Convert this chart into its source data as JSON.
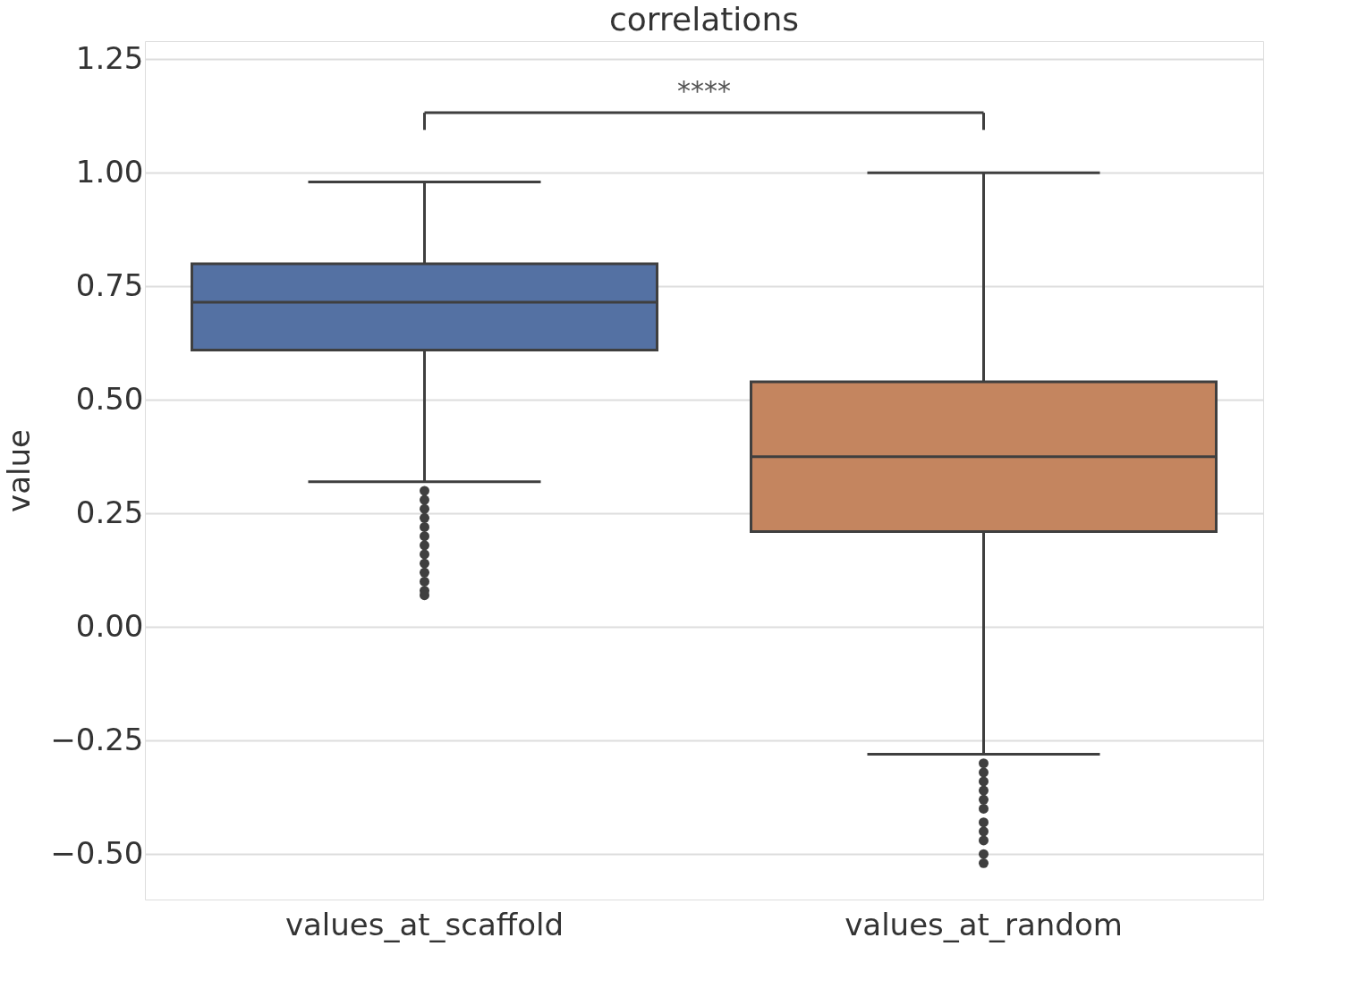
{
  "chart_data": {
    "type": "box",
    "title": "correlations",
    "ylabel": "value",
    "categories": [
      "values_at_scaffold",
      "values_at_random"
    ],
    "colors": [
      "#5471a3",
      "#c4855f"
    ],
    "boxes": [
      {
        "low": 0.32,
        "q1": 0.61,
        "median": 0.715,
        "q3": 0.8,
        "high": 0.98,
        "outliers": [
          0.3,
          0.28,
          0.26,
          0.24,
          0.22,
          0.2,
          0.18,
          0.16,
          0.14,
          0.12,
          0.1,
          0.08,
          0.07
        ]
      },
      {
        "low": -0.28,
        "q1": 0.21,
        "median": 0.375,
        "q3": 0.54,
        "high": 1.0,
        "outliers": [
          -0.3,
          -0.32,
          -0.34,
          -0.36,
          -0.38,
          -0.4,
          -0.43,
          -0.45,
          -0.47,
          -0.5,
          -0.52
        ]
      }
    ],
    "annotations": [
      "****"
    ],
    "ylim": [
      -0.6,
      1.29
    ],
    "yticks": [
      {
        "value": -0.5,
        "label": "−0.50"
      },
      {
        "value": -0.25,
        "label": "−0.25"
      },
      {
        "value": 0,
        "label": "0.00"
      },
      {
        "value": 0.25,
        "label": "0.25"
      },
      {
        "value": 0.5,
        "label": "0.50"
      },
      {
        "value": 0.75,
        "label": "0.75"
      },
      {
        "value": 1,
        "label": "1.00"
      },
      {
        "value": 1.25,
        "label": "1.25"
      }
    ],
    "grid": "y"
  }
}
